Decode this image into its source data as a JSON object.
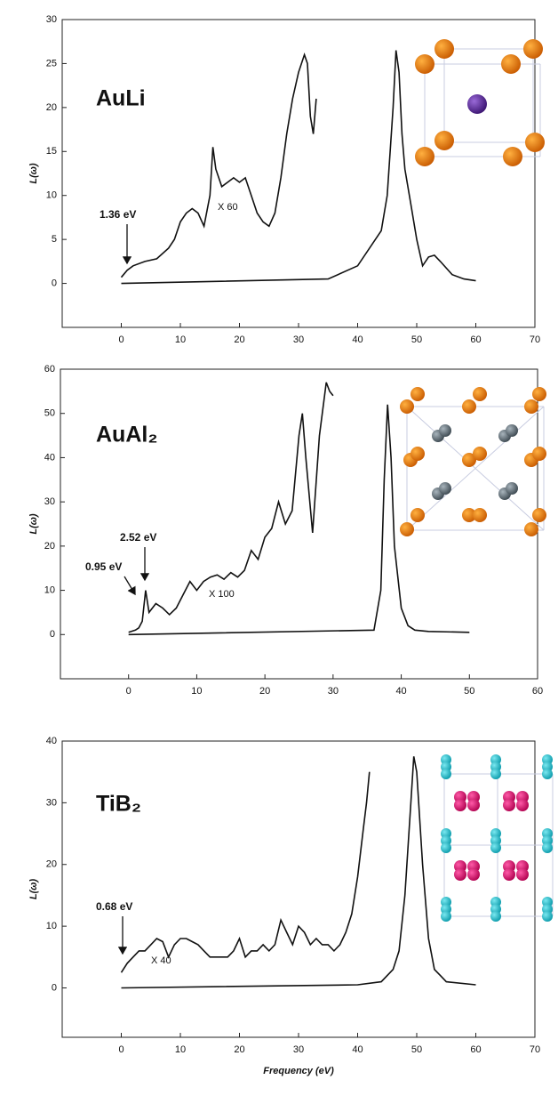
{
  "chart_data": [
    {
      "type": "line",
      "title": "AuLi",
      "ylabel": "L(ω)",
      "xlim": [
        -10,
        70
      ],
      "xticks": [
        0,
        10,
        20,
        30,
        40,
        50,
        60,
        70
      ],
      "ylim": [
        -5,
        30
      ],
      "yticks": [
        0,
        5,
        10,
        15,
        20,
        25,
        30
      ],
      "annotations": [
        "1.36 eV",
        "X 60"
      ],
      "series": [
        {
          "color": "#111111",
          "x": [
            0,
            35,
            40,
            44,
            45,
            46,
            46.5,
            47,
            47.5,
            48,
            49,
            50,
            51,
            52,
            53,
            54,
            56,
            58,
            60
          ],
          "values": [
            0,
            0.5,
            2,
            6,
            10,
            20,
            26.5,
            24,
            17,
            13,
            9,
            5,
            2,
            3,
            3.2,
            2.5,
            1,
            0.5,
            0.3
          ]
        },
        {
          "color": "#111111",
          "x": [
            0,
            1,
            2,
            4,
            6,
            8,
            9,
            10,
            11,
            12,
            13,
            14,
            15,
            15.5,
            16,
            17,
            18,
            19,
            20,
            21,
            22,
            23,
            24,
            25,
            26,
            27,
            28,
            29,
            30,
            31,
            31.5,
            32,
            32.5,
            33
          ],
          "values": [
            0.7,
            1.5,
            2,
            2.5,
            2.8,
            4,
            5,
            7,
            8,
            8.5,
            8,
            6.5,
            10,
            15.5,
            13,
            11,
            11.5,
            12,
            11.5,
            12,
            10,
            8,
            7,
            6.5,
            8,
            12,
            17,
            21,
            24,
            26,
            25,
            19,
            17,
            21
          ]
        }
      ]
    },
    {
      "type": "line",
      "title": "AuAl₂",
      "ylabel": "L(ω)",
      "xlim": [
        -10,
        60
      ],
      "xticks": [
        0,
        10,
        20,
        30,
        40,
        50,
        60
      ],
      "ylim": [
        -10,
        60
      ],
      "yticks": [
        0,
        10,
        20,
        30,
        40,
        50,
        60
      ],
      "annotations": [
        "2.52 eV",
        "0.95 eV",
        "X 100"
      ],
      "series": [
        {
          "color": "#111111",
          "x": [
            0,
            36,
            37,
            37.5,
            38,
            38.5,
            39,
            40,
            41,
            42,
            44,
            50
          ],
          "values": [
            0,
            1,
            10,
            35,
            52,
            40,
            20,
            6,
            2,
            1,
            0.7,
            0.5
          ]
        },
        {
          "color": "#111111",
          "x": [
            0,
            1,
            1.5,
            2,
            2.5,
            3,
            4,
            5,
            6,
            7,
            8,
            9,
            10,
            11,
            12,
            13,
            14,
            15,
            16,
            17,
            18,
            19,
            20,
            21,
            22,
            23,
            24,
            25,
            25.5,
            26,
            27,
            28,
            29,
            29.5,
            30
          ],
          "values": [
            0.5,
            1,
            1.5,
            3,
            10,
            5,
            7,
            6,
            4.5,
            6,
            9,
            12,
            10,
            12,
            13,
            13.5,
            12.5,
            14,
            13,
            14.5,
            19,
            17,
            22,
            24,
            30,
            25,
            28,
            45,
            50,
            40,
            23,
            45,
            57,
            55,
            54
          ]
        }
      ]
    },
    {
      "type": "line",
      "title": "TiB₂",
      "ylabel": "L(ω)",
      "xlabel": "Frequency (eV)",
      "xlim": [
        -10,
        70
      ],
      "xticks": [
        0,
        10,
        20,
        30,
        40,
        50,
        60,
        70
      ],
      "ylim": [
        -8,
        40
      ],
      "yticks": [
        0,
        10,
        20,
        30,
        40
      ],
      "annotations": [
        "0.68 eV",
        "X 40"
      ],
      "series": [
        {
          "color": "#111111",
          "x": [
            0,
            40,
            44,
            46,
            47,
            48,
            49,
            49.5,
            50,
            51,
            52,
            53,
            54,
            55,
            60
          ],
          "values": [
            0,
            0.5,
            1,
            3,
            6,
            15,
            30,
            37.5,
            35,
            20,
            8,
            3,
            2,
            1,
            0.5
          ]
        },
        {
          "color": "#111111",
          "x": [
            0,
            1,
            2,
            3,
            4,
            5,
            6,
            7,
            8,
            9,
            10,
            11,
            12,
            13,
            14,
            15,
            16,
            17,
            18,
            19,
            20,
            21,
            22,
            23,
            24,
            25,
            26,
            27,
            28,
            29,
            30,
            31,
            32,
            33,
            34,
            35,
            36,
            37,
            38,
            39,
            40,
            41,
            41.5,
            42
          ],
          "values": [
            2.5,
            4,
            5,
            6,
            6,
            7,
            8,
            7.5,
            5,
            7,
            8,
            8,
            7.5,
            7,
            6,
            5,
            5,
            5,
            5,
            6,
            8,
            5,
            6,
            6,
            7,
            6,
            7,
            11,
            9,
            7,
            10,
            9,
            7,
            8,
            7,
            7,
            6,
            7,
            9,
            12,
            18,
            26,
            30,
            35
          ]
        }
      ]
    }
  ]
}
